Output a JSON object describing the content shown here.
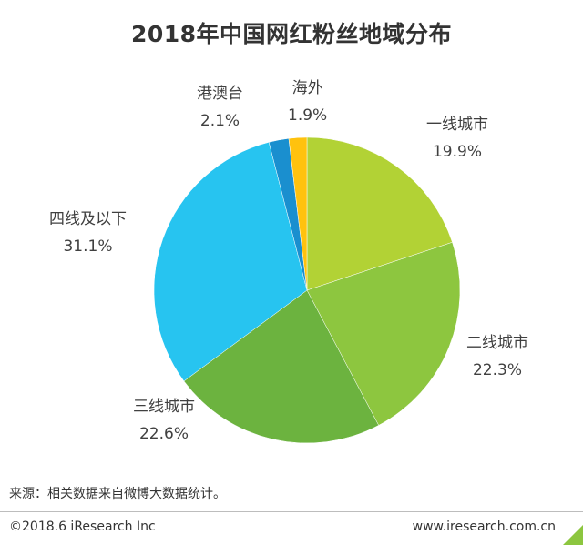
{
  "header": {
    "title": "2018年中国网红粉丝地域分布"
  },
  "chart_data": {
    "type": "pie",
    "title": "2018年中国网红粉丝地域分布",
    "slices": [
      {
        "label": "一线城市",
        "value": 19.9,
        "value_text": "19.9%",
        "color": "#b2d235"
      },
      {
        "label": "二线城市",
        "value": 22.3,
        "value_text": "22.3%",
        "color": "#8dc63f"
      },
      {
        "label": "三线城市",
        "value": 22.6,
        "value_text": "22.6%",
        "color": "#6cb33f"
      },
      {
        "label": "四线及以下",
        "value": 31.1,
        "value_text": "31.1%",
        "color": "#27c4f0"
      },
      {
        "label": "港澳台",
        "value": 2.1,
        "value_text": "2.1%",
        "color": "#1a8fcf"
      },
      {
        "label": "海外",
        "value": 1.9,
        "value_text": "1.9%",
        "color": "#ffc20e"
      }
    ]
  },
  "footnote": {
    "source": "来源：相关数据来自微博大数据统计。"
  },
  "footer": {
    "copyright": "©2018.6 iResearch Inc",
    "website": "www.iresearch.com.cn",
    "accent_color": "#8cc63f"
  }
}
